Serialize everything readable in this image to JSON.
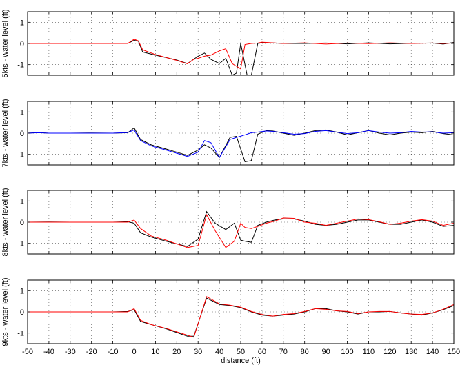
{
  "chart_data": [
    {
      "type": "line",
      "ylabel": "5kts - water level (ft)",
      "xlim": [
        -50,
        150
      ],
      "ylim": [
        -1.5,
        1.5
      ],
      "yticks": [
        -1,
        0,
        1
      ],
      "grid": true,
      "series": [
        {
          "color": "#000000",
          "x": [
            -50,
            -40,
            -30,
            -20,
            -10,
            -3,
            0,
            2,
            4,
            10,
            20,
            25,
            30,
            33,
            36,
            40,
            43,
            46,
            48,
            50,
            53,
            55,
            58,
            60,
            70,
            80,
            90,
            100,
            110,
            120,
            130,
            140,
            145,
            150
          ],
          "y": [
            0,
            0,
            0.01,
            0,
            0,
            0,
            0.15,
            0.1,
            -0.4,
            -0.55,
            -0.78,
            -0.95,
            -0.6,
            -0.45,
            -0.75,
            -0.95,
            -0.7,
            -1.5,
            -1.4,
            0,
            -1.5,
            -1.5,
            0,
            0.05,
            0,
            0,
            0.02,
            -0.02,
            0.03,
            -0.02,
            0.01,
            0.02,
            -0.03,
            0.05
          ]
        },
        {
          "color": "#ff0000",
          "x": [
            -50,
            -40,
            -30,
            -20,
            -10,
            -3,
            0,
            2,
            4,
            10,
            20,
            25,
            28,
            30,
            33,
            36,
            40,
            43,
            46,
            50,
            52,
            55,
            58,
            60,
            70,
            80,
            90,
            100,
            110,
            120,
            130,
            140,
            145,
            150
          ],
          "y": [
            0,
            0,
            0,
            0,
            0,
            0,
            0.2,
            0.12,
            -0.3,
            -0.52,
            -0.8,
            -0.96,
            -0.75,
            -0.7,
            -0.6,
            -0.55,
            -0.35,
            -0.25,
            -0.95,
            -1.2,
            -0.05,
            0,
            0.02,
            0.06,
            0,
            0.03,
            -0.03,
            0.02,
            -0.01,
            0.03,
            0,
            0.02,
            0,
            0.02
          ]
        }
      ]
    },
    {
      "type": "line",
      "ylabel": "7kts - water level (ft)",
      "xlim": [
        -50,
        150
      ],
      "ylim": [
        -1.5,
        1.5
      ],
      "yticks": [
        -1,
        0,
        1
      ],
      "grid": true,
      "series": [
        {
          "color": "#000000",
          "x": [
            -50,
            -45,
            -40,
            -30,
            -20,
            -10,
            -3,
            0,
            3,
            8,
            15,
            25,
            30,
            33,
            36,
            40,
            45,
            48,
            52,
            55,
            58,
            62,
            65,
            70,
            75,
            80,
            85,
            90,
            95,
            100,
            105,
            110,
            115,
            120,
            125,
            130,
            135,
            140,
            145,
            150
          ],
          "y": [
            0,
            0.03,
            0,
            0,
            0.01,
            0,
            0.02,
            0.25,
            -0.3,
            -0.55,
            -0.75,
            -1.05,
            -0.8,
            -0.55,
            -0.7,
            -1.15,
            -0.2,
            -0.15,
            -1.35,
            -1.3,
            -0.05,
            0.12,
            0.1,
            0,
            -0.1,
            0,
            0.12,
            0.15,
            0.05,
            -0.08,
            0.02,
            0.12,
            0,
            -0.08,
            0,
            0.05,
            0.02,
            0.08,
            -0.02,
            -0.08
          ]
        },
        {
          "color": "#0000ff",
          "x": [
            -50,
            -45,
            -40,
            -30,
            -20,
            -10,
            -3,
            0,
            3,
            8,
            15,
            25,
            30,
            33,
            36,
            40,
            45,
            48,
            52,
            55,
            58,
            62,
            65,
            70,
            75,
            80,
            85,
            90,
            95,
            100,
            105,
            110,
            115,
            120,
            125,
            130,
            135,
            140,
            145,
            150
          ],
          "y": [
            0,
            0.02,
            0,
            0,
            0,
            0,
            0.03,
            0.15,
            -0.35,
            -0.6,
            -0.8,
            -1.1,
            -0.9,
            -0.35,
            -0.45,
            -1.15,
            -0.3,
            -0.2,
            -0.08,
            0.02,
            0.05,
            0.1,
            0.08,
            0.02,
            -0.05,
            -0.02,
            0.08,
            0.12,
            0.05,
            -0.02,
            0.02,
            0.12,
            0.05,
            0,
            0.02,
            0.08,
            0.05,
            0.06,
            0,
            0.02
          ]
        }
      ]
    },
    {
      "type": "line",
      "ylabel": "8kts - water level (ft)",
      "xlim": [
        -50,
        150
      ],
      "ylim": [
        -1.5,
        1.5
      ],
      "yticks": [
        -1,
        0,
        1
      ],
      "grid": true,
      "series": [
        {
          "color": "#000000",
          "x": [
            -50,
            -40,
            -30,
            -20,
            -10,
            -3,
            0,
            3,
            8,
            15,
            25,
            30,
            34,
            38,
            43,
            47,
            50,
            52,
            55,
            58,
            62,
            66,
            70,
            75,
            80,
            85,
            90,
            95,
            100,
            105,
            110,
            115,
            120,
            125,
            130,
            135,
            140,
            145,
            150
          ],
          "y": [
            0,
            0.01,
            0,
            0,
            0,
            0.02,
            -0.05,
            -0.5,
            -0.7,
            -0.9,
            -1.15,
            -0.8,
            0.5,
            -0.05,
            -0.35,
            -0.05,
            -0.85,
            -0.9,
            -0.95,
            -0.15,
            0,
            0.1,
            0.15,
            0.15,
            0.05,
            -0.1,
            -0.15,
            -0.1,
            0,
            0.1,
            0.1,
            0,
            -0.1,
            -0.1,
            0,
            0.1,
            0,
            -0.2,
            -0.15
          ]
        },
        {
          "color": "#ff0000",
          "x": [
            -50,
            -40,
            -30,
            -20,
            -10,
            -3,
            0,
            3,
            8,
            15,
            25,
            30,
            34,
            38,
            43,
            47,
            50,
            52,
            55,
            58,
            62,
            66,
            70,
            75,
            80,
            85,
            90,
            95,
            100,
            105,
            110,
            115,
            120,
            125,
            130,
            135,
            140,
            145,
            150
          ],
          "y": [
            0,
            0,
            0,
            0,
            0,
            0,
            0.1,
            -0.3,
            -0.65,
            -0.85,
            -1.2,
            -1.1,
            0.35,
            -0.4,
            -1.2,
            -0.9,
            -0.05,
            -0.25,
            -0.3,
            -0.2,
            -0.05,
            0.05,
            0.2,
            0.18,
            0,
            -0.05,
            -0.15,
            -0.05,
            0.05,
            0.15,
            0.12,
            0.02,
            -0.1,
            -0.05,
            0.05,
            0.12,
            0.05,
            -0.15,
            -0.05
          ]
        }
      ]
    },
    {
      "type": "line",
      "ylabel": "9kts - water level (ft)",
      "xlim": [
        -50,
        150
      ],
      "ylim": [
        -1.5,
        1.5
      ],
      "yticks": [
        -1,
        0,
        1
      ],
      "xticks": [
        -50,
        -40,
        -30,
        -20,
        -10,
        0,
        10,
        20,
        30,
        40,
        50,
        60,
        70,
        80,
        90,
        100,
        110,
        120,
        130,
        140,
        150
      ],
      "xlabel": "distance (ft)",
      "grid": true,
      "series": [
        {
          "color": "#000000",
          "x": [
            -50,
            -40,
            -30,
            -20,
            -10,
            -3,
            0,
            3,
            8,
            15,
            25,
            28,
            34,
            40,
            45,
            50,
            55,
            60,
            65,
            70,
            75,
            80,
            85,
            90,
            95,
            100,
            105,
            110,
            115,
            120,
            125,
            130,
            135,
            140,
            145,
            150
          ],
          "y": [
            0,
            0,
            0,
            0,
            0,
            0.02,
            0.1,
            -0.45,
            -0.6,
            -0.8,
            -1.15,
            -1.15,
            0.65,
            0.35,
            0.3,
            0.2,
            0,
            -0.15,
            -0.2,
            -0.15,
            -0.1,
            0,
            0.15,
            0.15,
            0.05,
            0,
            -0.1,
            0,
            0,
            0.02,
            -0.05,
            -0.1,
            -0.15,
            -0.05,
            0.1,
            0.3
          ]
        },
        {
          "color": "#ff0000",
          "x": [
            -50,
            -40,
            -30,
            -20,
            -10,
            -3,
            0,
            3,
            8,
            15,
            25,
            28,
            34,
            40,
            45,
            50,
            55,
            60,
            65,
            70,
            75,
            80,
            85,
            90,
            95,
            100,
            105,
            110,
            115,
            120,
            125,
            130,
            135,
            140,
            145,
            150
          ],
          "y": [
            0,
            0,
            0,
            0,
            0,
            0,
            0.15,
            -0.4,
            -0.6,
            -0.78,
            -1.1,
            -1.2,
            0.72,
            0.38,
            0.32,
            0.22,
            0.02,
            -0.12,
            -0.2,
            -0.12,
            -0.08,
            0.02,
            0.15,
            0.12,
            0.05,
            0.02,
            -0.08,
            0,
            0.02,
            0.02,
            -0.05,
            -0.1,
            -0.12,
            -0.05,
            0.12,
            0.35
          ]
        }
      ]
    }
  ]
}
